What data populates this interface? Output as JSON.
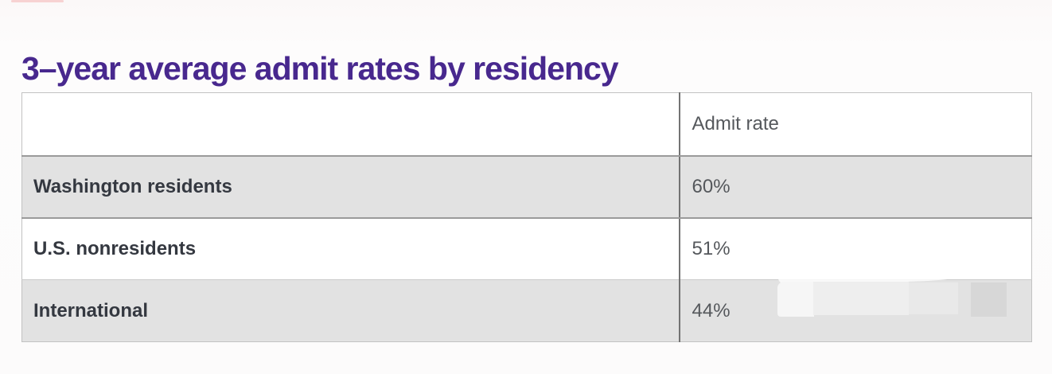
{
  "chart_data": {
    "type": "table",
    "title": "3–year average admit rates by residency",
    "columns": [
      "",
      "Admit rate"
    ],
    "categories": [
      "Washington residents",
      "U.S. nonresidents",
      "International"
    ],
    "values": [
      "60%",
      "51%",
      "44%"
    ],
    "values_numeric": [
      60,
      51,
      44
    ],
    "layout": {
      "legend": "none",
      "grid": "table-borders",
      "striped_row_indices": [
        0,
        2
      ],
      "header_row_background": "#ffffff"
    }
  },
  "colors": {
    "title_purple": "#48288e",
    "row_stripe_gray": "#e2e2e2",
    "table_border": "#c2c2c2",
    "column_divider": "#737373",
    "row_separator": "#9a9a9a",
    "header_text": "#30343d",
    "label_text": "#343840",
    "value_text": "#55585c",
    "page_background": "#fcfbfb"
  }
}
